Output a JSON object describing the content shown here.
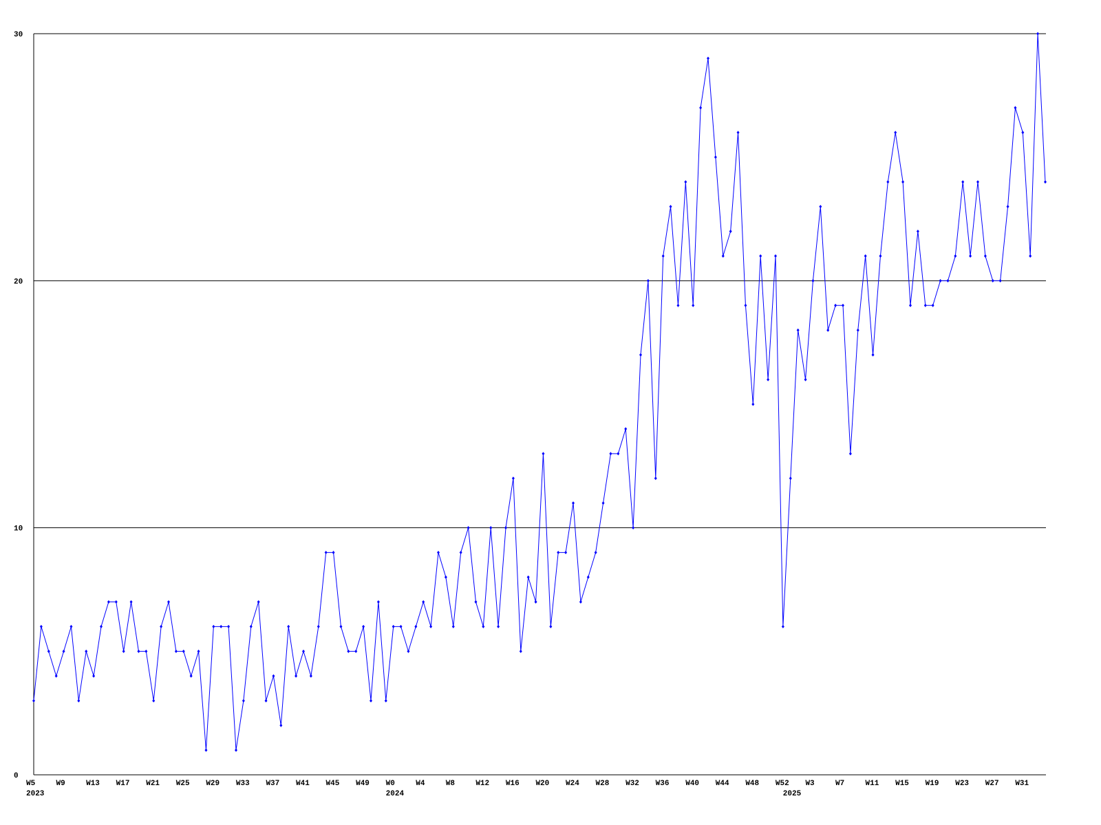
{
  "chart_data": {
    "type": "line",
    "categories": [
      "W5",
      null,
      null,
      null,
      "W9",
      null,
      null,
      null,
      "W13",
      null,
      null,
      null,
      "W17",
      null,
      null,
      null,
      "W21",
      null,
      null,
      null,
      "W25",
      null,
      null,
      null,
      "W29",
      null,
      null,
      null,
      "W33",
      null,
      null,
      null,
      "W37",
      null,
      null,
      null,
      "W41",
      null,
      null,
      null,
      "W45",
      null,
      null,
      null,
      "W49",
      null,
      null,
      null,
      "W0",
      null,
      null,
      null,
      "W4",
      null,
      null,
      null,
      "W8",
      null,
      null,
      null,
      "W12",
      null,
      null,
      null,
      "W16",
      null,
      null,
      null,
      "W20",
      null,
      null,
      null,
      "W24",
      null,
      null,
      null,
      "W28",
      null,
      null,
      null,
      "W32",
      null,
      null,
      null,
      "W36",
      null,
      null,
      null,
      "W40",
      null,
      null,
      null,
      "W44",
      null,
      null,
      null,
      "W48",
      null,
      null,
      null,
      "W52",
      null,
      null,
      null,
      "W3",
      null,
      null,
      null,
      "W7",
      null,
      null,
      null,
      "W11",
      null,
      null,
      null,
      "W15",
      null,
      null,
      null,
      "W19",
      null,
      null,
      null,
      "W23",
      null,
      null,
      null,
      "W27",
      null,
      null,
      null,
      "W31",
      null,
      null,
      null
    ],
    "years": [
      "2023",
      null,
      null,
      null,
      null,
      null,
      null,
      null,
      null,
      null,
      null,
      null,
      null,
      null,
      null,
      null,
      null,
      null,
      null,
      null,
      null,
      null,
      null,
      null,
      null,
      null,
      null,
      null,
      null,
      null,
      null,
      null,
      null,
      null,
      null,
      null,
      null,
      null,
      null,
      null,
      null,
      null,
      null,
      null,
      null,
      null,
      null,
      null,
      "2024",
      null,
      null,
      null,
      null,
      null,
      null,
      null,
      null,
      null,
      null,
      null,
      null,
      null,
      null,
      null,
      null,
      null,
      null,
      null,
      null,
      null,
      null,
      null,
      null,
      null,
      null,
      null,
      null,
      null,
      null,
      null,
      null,
      null,
      null,
      null,
      null,
      null,
      null,
      null,
      null,
      null,
      null,
      null,
      null,
      null,
      null,
      null,
      null,
      null,
      null,
      null,
      null,
      "2025",
      null,
      null,
      null,
      null,
      null,
      null,
      null,
      null,
      null,
      null,
      null,
      null,
      null,
      null,
      null,
      null,
      null,
      null,
      null,
      null,
      null,
      null,
      null,
      null,
      null,
      null,
      null,
      null,
      null,
      null,
      null,
      null,
      null,
      null
    ],
    "series": [
      {
        "color": "#0000ff",
        "values": [
          3,
          6,
          5,
          4,
          5,
          6,
          3,
          5,
          4,
          6,
          7,
          7,
          5,
          7,
          5,
          5,
          3,
          6,
          7,
          5,
          5,
          4,
          5,
          1,
          6,
          6,
          6,
          1,
          3,
          6,
          7,
          3,
          4,
          2,
          6,
          4,
          5,
          4,
          6,
          9,
          9,
          6,
          5,
          5,
          6,
          3,
          7,
          3,
          6,
          6,
          5,
          6,
          7,
          6,
          9,
          8,
          6,
          9,
          10,
          7,
          6,
          10,
          6,
          10,
          12,
          5,
          8,
          7,
          13,
          6,
          9,
          9,
          11,
          7,
          8,
          9,
          11,
          13,
          13,
          14,
          10,
          17,
          20,
          12,
          21,
          23,
          19,
          24,
          19,
          27,
          29,
          25,
          21,
          22,
          26,
          19,
          15,
          21,
          16,
          21,
          6,
          12,
          18,
          16,
          20,
          23,
          18,
          19,
          19,
          13,
          18,
          21,
          17,
          21,
          24,
          26,
          24,
          19,
          22,
          19,
          19,
          20,
          20,
          21,
          24,
          21,
          24,
          21,
          20,
          20,
          23,
          27,
          26,
          21,
          30,
          24
        ]
      }
    ],
    "ylim": [
      0,
      30
    ],
    "yticks": [
      0,
      10,
      20,
      30
    ],
    "grid": true
  }
}
